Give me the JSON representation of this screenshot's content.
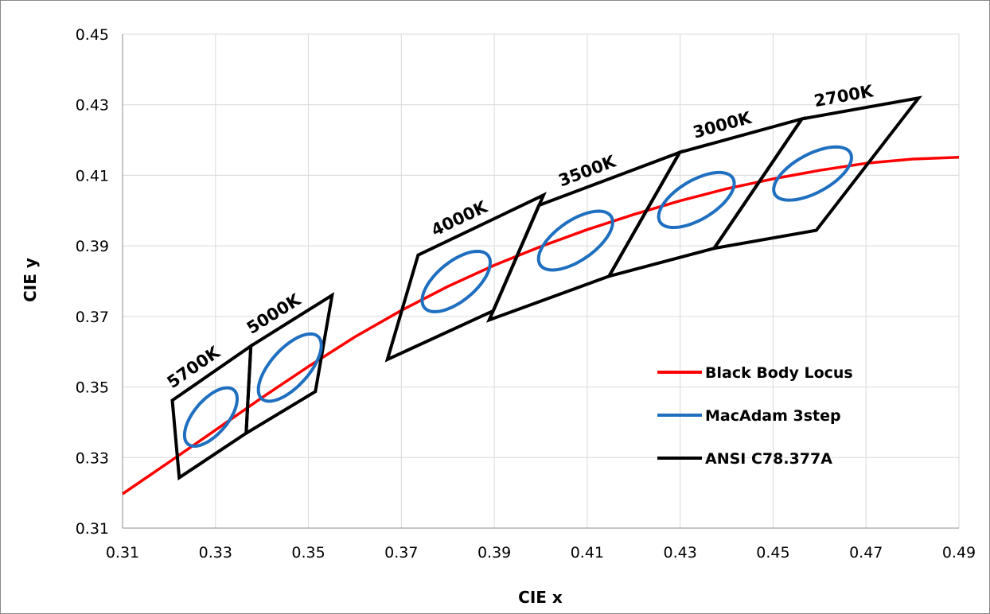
{
  "chart_data": {
    "type": "scatter",
    "title": "",
    "xlabel": "CIE  x",
    "ylabel": "CIE  y",
    "xlim": [
      0.31,
      0.49
    ],
    "ylim": [
      0.31,
      0.45
    ],
    "x_ticks": [
      "0.31",
      "0.33",
      "0.35",
      "0.37",
      "0.39",
      "0.41",
      "0.43",
      "0.45",
      "0.47",
      "0.49"
    ],
    "y_ticks": [
      "0.31",
      "0.33",
      "0.35",
      "0.37",
      "0.39",
      "0.41",
      "0.43",
      "0.45"
    ],
    "grid": "vertical and horizontal major gridlines",
    "legend_position": "lower-right inside plot",
    "colors": {
      "locus": "#ff0000",
      "ellipse": "#1f6fc0",
      "quad": "#000000",
      "grid": "#d9d9d9"
    },
    "series": [
      {
        "name": "Black Body Locus",
        "kind": "line",
        "points": [
          [
            0.31,
            0.3197
          ],
          [
            0.32,
            0.3287
          ],
          [
            0.33,
            0.3378
          ],
          [
            0.34,
            0.347
          ],
          [
            0.35,
            0.3558
          ],
          [
            0.36,
            0.3642
          ],
          [
            0.37,
            0.3717
          ],
          [
            0.38,
            0.3785
          ],
          [
            0.39,
            0.3845
          ],
          [
            0.4,
            0.3898
          ],
          [
            0.41,
            0.3946
          ],
          [
            0.42,
            0.3989
          ],
          [
            0.43,
            0.4028
          ],
          [
            0.44,
            0.4062
          ],
          [
            0.45,
            0.409
          ],
          [
            0.46,
            0.4114
          ],
          [
            0.47,
            0.4134
          ],
          [
            0.48,
            0.4146
          ],
          [
            0.49,
            0.4151
          ]
        ]
      },
      {
        "name": "MacAdam 3step",
        "kind": "ellipses",
        "ellipses": [
          {
            "cx": 0.329,
            "cy": 0.3415,
            "a": 0.0092,
            "b": 0.004,
            "angle_deg": 61
          },
          {
            "cx": 0.346,
            "cy": 0.3555,
            "a": 0.0108,
            "b": 0.0045,
            "angle_deg": 59
          },
          {
            "cx": 0.3818,
            "cy": 0.3799,
            "a": 0.0102,
            "b": 0.0048,
            "angle_deg": 52
          },
          {
            "cx": 0.4075,
            "cy": 0.3915,
            "a": 0.0104,
            "b": 0.005,
            "angle_deg": 47
          },
          {
            "cx": 0.4335,
            "cy": 0.403,
            "a": 0.0101,
            "b": 0.005,
            "angle_deg": 43
          },
          {
            "cx": 0.4585,
            "cy": 0.4105,
            "a": 0.0101,
            "b": 0.005,
            "angle_deg": 40
          }
        ]
      },
      {
        "name": "ANSI C78.377A",
        "kind": "quadrangles",
        "quads": [
          {
            "label": "5700K",
            "points": [
              [
                0.3207,
                0.3462
              ],
              [
                0.3376,
                0.3616
              ],
              [
                0.3366,
                0.3369
              ],
              [
                0.3222,
                0.3243
              ]
            ]
          },
          {
            "label": "5000K",
            "points": [
              [
                0.3376,
                0.3616
              ],
              [
                0.3551,
                0.376
              ],
              [
                0.3515,
                0.3487
              ],
              [
                0.3366,
                0.3369
              ]
            ]
          },
          {
            "label": "4000K",
            "points": [
              [
                0.3736,
                0.3874
              ],
              [
                0.4006,
                0.4044
              ],
              [
                0.3898,
                0.3716
              ],
              [
                0.367,
                0.3578
              ]
            ]
          },
          {
            "label": "3500K",
            "points": [
              [
                0.3996,
                0.4015
              ],
              [
                0.4299,
                0.4165
              ],
              [
                0.4147,
                0.3814
              ],
              [
                0.3889,
                0.369
              ]
            ]
          },
          {
            "label": "3000K",
            "points": [
              [
                0.4299,
                0.4165
              ],
              [
                0.4562,
                0.426
              ],
              [
                0.4373,
                0.3893
              ],
              [
                0.4147,
                0.3814
              ]
            ]
          },
          {
            "label": "2700K",
            "points": [
              [
                0.4562,
                0.426
              ],
              [
                0.4813,
                0.4319
              ],
              [
                0.4593,
                0.3944
              ],
              [
                0.4373,
                0.3893
              ]
            ]
          }
        ]
      }
    ]
  }
}
